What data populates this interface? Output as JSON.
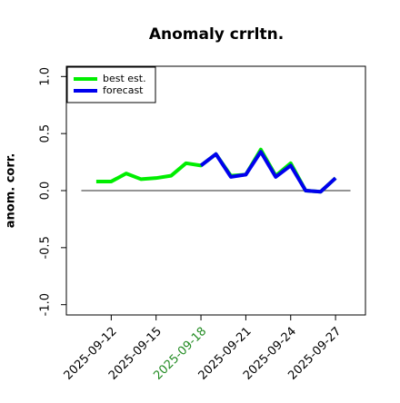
{
  "chart_data": {
    "type": "line",
    "title": "Anomaly crrltn.",
    "ylabel": "anom. corr.",
    "x": [
      "2025-09-11",
      "2025-09-12",
      "2025-09-13",
      "2025-09-14",
      "2025-09-15",
      "2025-09-16",
      "2025-09-17",
      "2025-09-18",
      "2025-09-19",
      "2025-09-20",
      "2025-09-21",
      "2025-09-22",
      "2025-09-23",
      "2025-09-24",
      "2025-09-25",
      "2025-09-26",
      "2025-09-27"
    ],
    "series": [
      {
        "name": "best est.",
        "color": "#00ee00",
        "values": [
          0.08,
          0.08,
          0.15,
          0.1,
          0.11,
          0.13,
          0.24,
          0.22,
          0.32,
          0.13,
          0.14,
          0.36,
          0.13,
          0.24,
          0.0,
          -0.01,
          0.11
        ]
      },
      {
        "name": "forecast",
        "color": "#0000ee",
        "values": [
          null,
          null,
          null,
          null,
          null,
          null,
          null,
          0.22,
          0.32,
          0.12,
          0.14,
          0.34,
          0.12,
          0.22,
          0.0,
          -0.01,
          0.11
        ]
      }
    ],
    "xlim": [
      "2025-09-09",
      "2025-09-29"
    ],
    "xticks": [
      "2025-09-12",
      "2025-09-15",
      "2025-09-18",
      "2025-09-21",
      "2025-09-24",
      "2025-09-27"
    ],
    "xtick_colors": [
      "#000000",
      "#000000",
      "#228b22",
      "#000000",
      "#000000",
      "#000000"
    ],
    "ylim": [
      -1.09,
      1.09
    ],
    "yticks": [
      {
        "value": -1,
        "label": "-1.0"
      },
      {
        "value": -0.5,
        "label": "-0.5"
      },
      {
        "value": 0,
        "label": "0.0"
      },
      {
        "value": 0.5,
        "label": "0.5"
      },
      {
        "value": 1,
        "label": "1.0"
      }
    ],
    "hline": 0,
    "legend": "top-left"
  }
}
